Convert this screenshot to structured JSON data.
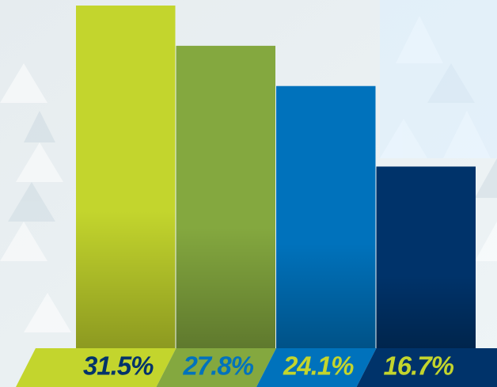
{
  "chart_data": {
    "type": "bar",
    "values": [
      31.5,
      27.8,
      24.1,
      16.7
    ],
    "value_labels": [
      "31.5%",
      "27.8%",
      "24.1%",
      "16.7%"
    ],
    "colors": [
      "#c3d52d",
      "#84a83f",
      "#0072bc",
      "#00336a"
    ],
    "label_colors": [
      "#00336a",
      "#0072bc",
      "#c3d52d",
      "#c3d52d"
    ]
  }
}
